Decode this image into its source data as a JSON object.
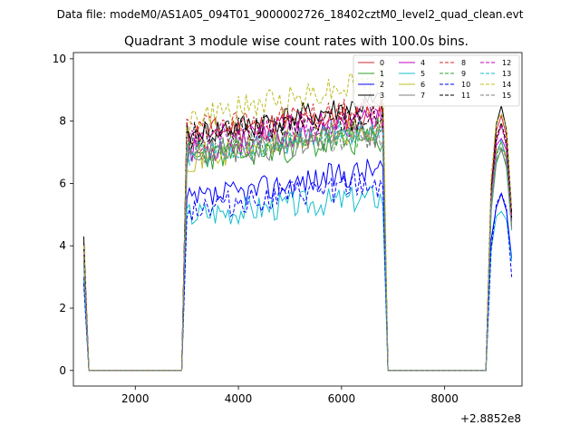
{
  "figure": {
    "suptitle": "Data file: modeM0/AS1A05_094T01_9000002726_18402cztM0_level2_quad_clean.evt",
    "offset_label": "+2.8852e8"
  },
  "chart_data": {
    "type": "line",
    "title": "Quadrant 3 module wise count rates with 100.0s bins.",
    "xlabel": "",
    "ylabel": "",
    "xlim": [
      800,
      9500
    ],
    "ylim": [
      -0.5,
      10.2
    ],
    "xticks": [
      2000,
      4000,
      6000,
      8000
    ],
    "yticks": [
      0,
      2,
      4,
      6,
      8,
      10
    ],
    "grid": false,
    "legend": {
      "placement": "top-right",
      "columns": 4
    },
    "x_offset": 288520000,
    "segments": [
      {
        "x_start": 1000,
        "x_end": 1100,
        "kind": "tail"
      },
      {
        "x_start": 1100,
        "x_end": 2900,
        "kind": "gap"
      },
      {
        "x_start": 2900,
        "x_end": 3000,
        "kind": "ramp"
      },
      {
        "x_start": 3000,
        "x_end": 6800,
        "kind": "active"
      },
      {
        "x_start": 6800,
        "x_end": 6900,
        "kind": "fall"
      },
      {
        "x_start": 6900,
        "x_end": 8800,
        "kind": "gap"
      },
      {
        "x_start": 8800,
        "x_end": 8900,
        "kind": "ramp"
      },
      {
        "x_start": 8900,
        "x_end": 9300,
        "kind": "active2"
      }
    ],
    "series": [
      {
        "name": "0",
        "color": "#d62728",
        "dash": false,
        "start": 4.1,
        "level_start": 7.6,
        "level_end": 8.2,
        "end_peak": 8.1,
        "end": 5.0,
        "seed": 11
      },
      {
        "name": "1",
        "color": "#2ca02c",
        "dash": false,
        "start": 3.6,
        "level_start": 6.8,
        "level_end": 7.4,
        "end_peak": 7.0,
        "end": 4.6,
        "seed": 23
      },
      {
        "name": "2",
        "color": "#0000ff",
        "dash": false,
        "start": 3.0,
        "level_start": 5.4,
        "level_end": 6.5,
        "end_peak": 5.5,
        "end": 3.6,
        "seed": 37
      },
      {
        "name": "3",
        "color": "#000000",
        "dash": false,
        "start": 4.3,
        "level_start": 7.5,
        "level_end": 8.6,
        "end_peak": 8.3,
        "end": 5.1,
        "seed": 41
      },
      {
        "name": "4",
        "color": "#bf00bf",
        "dash": false,
        "start": 3.8,
        "level_start": 7.0,
        "level_end": 8.0,
        "end_peak": 7.6,
        "end": 4.8,
        "seed": 53
      },
      {
        "name": "5",
        "color": "#17becf",
        "dash": false,
        "start": 2.9,
        "level_start": 5.0,
        "level_end": 5.6,
        "end_peak": 5.2,
        "end": 3.5,
        "seed": 67
      },
      {
        "name": "6",
        "color": "#bcbd22",
        "dash": false,
        "start": 3.7,
        "level_start": 6.8,
        "level_end": 7.8,
        "end_peak": 7.4,
        "end": 4.7,
        "seed": 71
      },
      {
        "name": "7",
        "color": "#7f7f7f",
        "dash": false,
        "start": 3.5,
        "level_start": 6.9,
        "level_end": 7.6,
        "end_peak": 7.1,
        "end": 4.5,
        "seed": 83
      },
      {
        "name": "8",
        "color": "#d62728",
        "dash": true,
        "start": 4.0,
        "level_start": 7.8,
        "level_end": 8.4,
        "end_peak": 7.9,
        "end": 4.9,
        "seed": 97
      },
      {
        "name": "9",
        "color": "#2ca02c",
        "dash": true,
        "start": 3.4,
        "level_start": 7.0,
        "level_end": 7.7,
        "end_peak": 7.3,
        "end": 4.6,
        "seed": 101
      },
      {
        "name": "10",
        "color": "#0000ff",
        "dash": true,
        "start": 2.8,
        "level_start": 5.2,
        "level_end": 6.0,
        "end_peak": 5.6,
        "end": 3.0,
        "seed": 113
      },
      {
        "name": "11",
        "color": "#000000",
        "dash": true,
        "start": 3.9,
        "level_start": 7.5,
        "level_end": 8.2,
        "end_peak": 7.8,
        "end": 4.9,
        "seed": 127
      },
      {
        "name": "12",
        "color": "#bf00bf",
        "dash": true,
        "start": 3.8,
        "level_start": 7.3,
        "level_end": 8.3,
        "end_peak": 7.7,
        "end": 4.8,
        "seed": 131
      },
      {
        "name": "13",
        "color": "#17becf",
        "dash": true,
        "start": 3.4,
        "level_start": 6.9,
        "level_end": 7.8,
        "end_peak": 7.2,
        "end": 4.5,
        "seed": 139
      },
      {
        "name": "14",
        "color": "#bcbd22",
        "dash": true,
        "start": 4.0,
        "level_start": 8.0,
        "level_end": 9.4,
        "end_peak": 8.4,
        "end": 5.2,
        "seed": 149
      },
      {
        "name": "15",
        "color": "#7f7f7f",
        "dash": true,
        "start": 3.6,
        "level_start": 7.0,
        "level_end": 7.6,
        "end_peak": 7.3,
        "end": 4.6,
        "seed": 157
      }
    ]
  }
}
